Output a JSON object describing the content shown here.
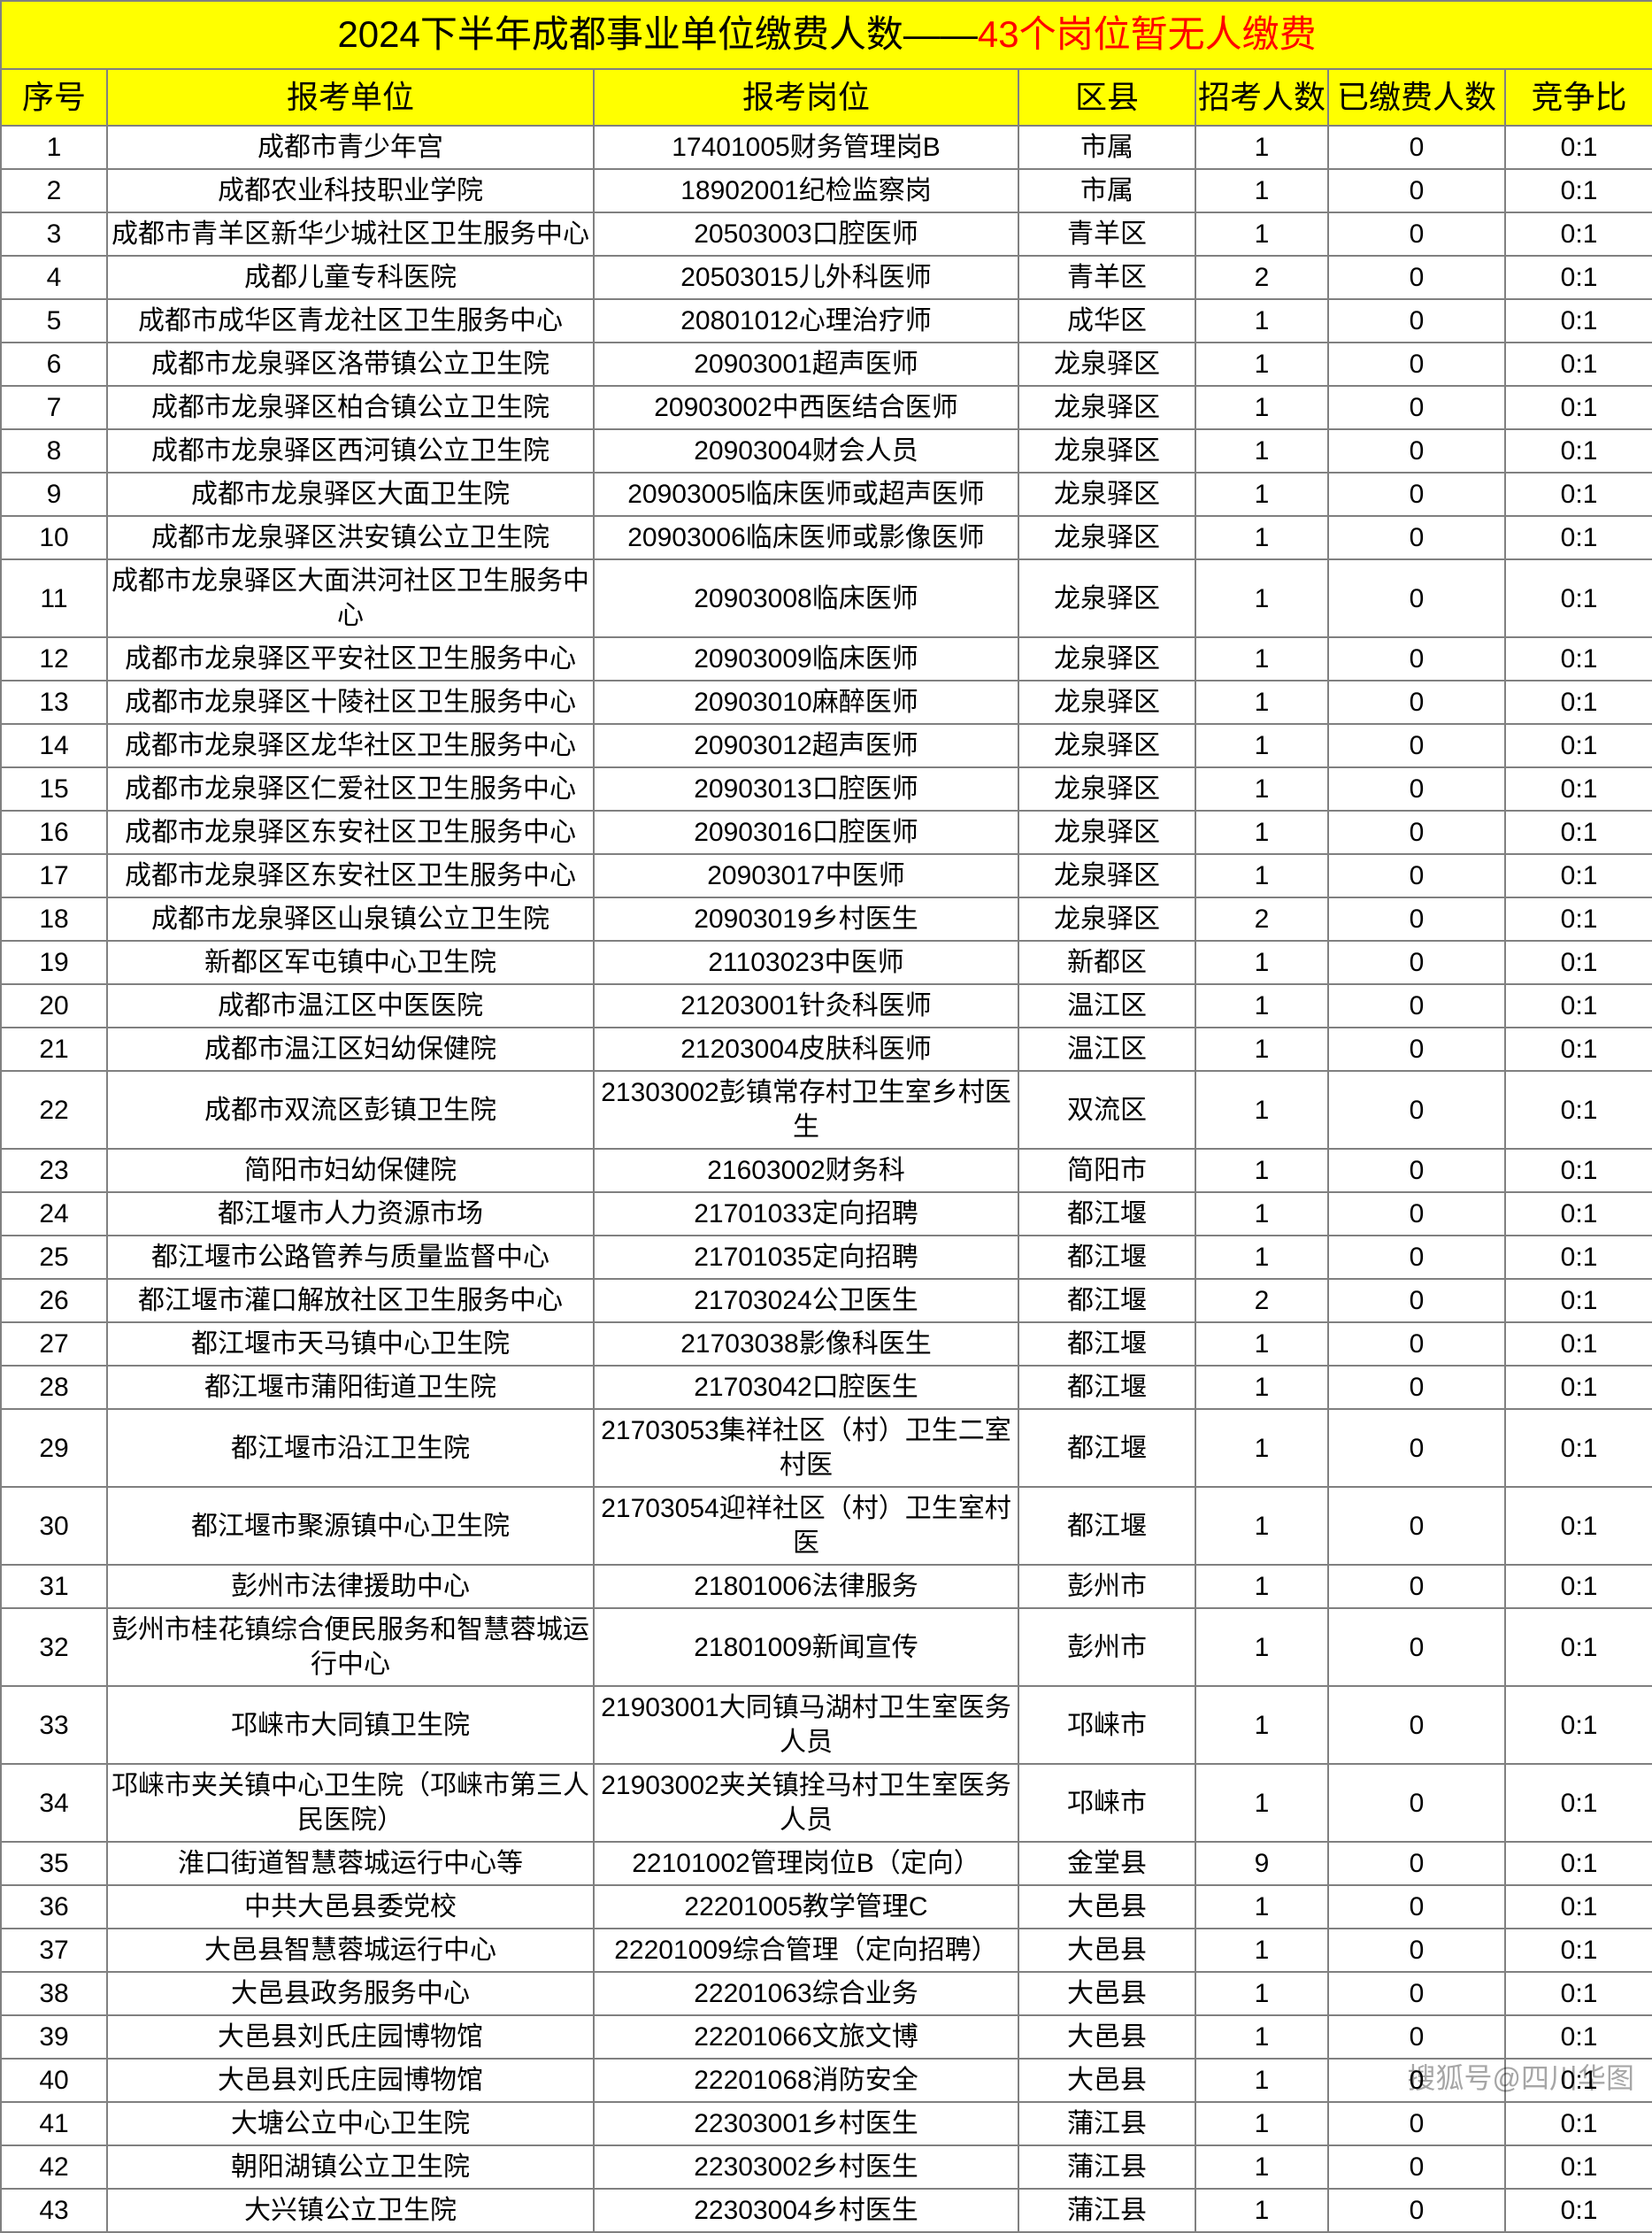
{
  "title_prefix": "2024下半年成都事业单位缴费人数——",
  "title_highlight": "43个岗位暂无人缴费",
  "watermark": "搜狐号@四川华图",
  "headers": [
    "序号",
    "报考单位",
    "报考岗位",
    "区县",
    "招考人数",
    "已缴费人数",
    "竞争比"
  ],
  "rows": [
    {
      "n": "1",
      "unit": "成都市青少年宫",
      "post": "17401005财务管理岗B",
      "area": "市属",
      "recruit": "1",
      "paid": "0",
      "ratio": "0:1"
    },
    {
      "n": "2",
      "unit": "成都农业科技职业学院",
      "post": "18902001纪检监察岗",
      "area": "市属",
      "recruit": "1",
      "paid": "0",
      "ratio": "0:1"
    },
    {
      "n": "3",
      "unit": "成都市青羊区新华少城社区卫生服务中心",
      "post": "20503003口腔医师",
      "area": "青羊区",
      "recruit": "1",
      "paid": "0",
      "ratio": "0:1"
    },
    {
      "n": "4",
      "unit": "成都儿童专科医院",
      "post": "20503015儿外科医师",
      "area": "青羊区",
      "recruit": "2",
      "paid": "0",
      "ratio": "0:1"
    },
    {
      "n": "5",
      "unit": "成都市成华区青龙社区卫生服务中心",
      "post": "20801012心理治疗师",
      "area": "成华区",
      "recruit": "1",
      "paid": "0",
      "ratio": "0:1"
    },
    {
      "n": "6",
      "unit": "成都市龙泉驿区洛带镇公立卫生院",
      "post": "20903001超声医师",
      "area": "龙泉驿区",
      "recruit": "1",
      "paid": "0",
      "ratio": "0:1"
    },
    {
      "n": "7",
      "unit": "成都市龙泉驿区柏合镇公立卫生院",
      "post": "20903002中西医结合医师",
      "area": "龙泉驿区",
      "recruit": "1",
      "paid": "0",
      "ratio": "0:1"
    },
    {
      "n": "8",
      "unit": "成都市龙泉驿区西河镇公立卫生院",
      "post": "20903004财会人员",
      "area": "龙泉驿区",
      "recruit": "1",
      "paid": "0",
      "ratio": "0:1"
    },
    {
      "n": "9",
      "unit": "成都市龙泉驿区大面卫生院",
      "post": "20903005临床医师或超声医师",
      "area": "龙泉驿区",
      "recruit": "1",
      "paid": "0",
      "ratio": "0:1"
    },
    {
      "n": "10",
      "unit": "成都市龙泉驿区洪安镇公立卫生院",
      "post": "20903006临床医师或影像医师",
      "area": "龙泉驿区",
      "recruit": "1",
      "paid": "0",
      "ratio": "0:1"
    },
    {
      "n": "11",
      "unit": "成都市龙泉驿区大面洪河社区卫生服务中心",
      "post": "20903008临床医师",
      "area": "龙泉驿区",
      "recruit": "1",
      "paid": "0",
      "ratio": "0:1"
    },
    {
      "n": "12",
      "unit": "成都市龙泉驿区平安社区卫生服务中心",
      "post": "20903009临床医师",
      "area": "龙泉驿区",
      "recruit": "1",
      "paid": "0",
      "ratio": "0:1"
    },
    {
      "n": "13",
      "unit": "成都市龙泉驿区十陵社区卫生服务中心",
      "post": "20903010麻醉医师",
      "area": "龙泉驿区",
      "recruit": "1",
      "paid": "0",
      "ratio": "0:1"
    },
    {
      "n": "14",
      "unit": "成都市龙泉驿区龙华社区卫生服务中心",
      "post": "20903012超声医师",
      "area": "龙泉驿区",
      "recruit": "1",
      "paid": "0",
      "ratio": "0:1"
    },
    {
      "n": "15",
      "unit": "成都市龙泉驿区仁爱社区卫生服务中心",
      "post": "20903013口腔医师",
      "area": "龙泉驿区",
      "recruit": "1",
      "paid": "0",
      "ratio": "0:1"
    },
    {
      "n": "16",
      "unit": "成都市龙泉驿区东安社区卫生服务中心",
      "post": "20903016口腔医师",
      "area": "龙泉驿区",
      "recruit": "1",
      "paid": "0",
      "ratio": "0:1"
    },
    {
      "n": "17",
      "unit": "成都市龙泉驿区东安社区卫生服务中心",
      "post": "20903017中医师",
      "area": "龙泉驿区",
      "recruit": "1",
      "paid": "0",
      "ratio": "0:1"
    },
    {
      "n": "18",
      "unit": "成都市龙泉驿区山泉镇公立卫生院",
      "post": "20903019乡村医生",
      "area": "龙泉驿区",
      "recruit": "2",
      "paid": "0",
      "ratio": "0:1"
    },
    {
      "n": "19",
      "unit": "新都区军屯镇中心卫生院",
      "post": "21103023中医师",
      "area": "新都区",
      "recruit": "1",
      "paid": "0",
      "ratio": "0:1"
    },
    {
      "n": "20",
      "unit": "成都市温江区中医医院",
      "post": "21203001针灸科医师",
      "area": "温江区",
      "recruit": "1",
      "paid": "0",
      "ratio": "0:1"
    },
    {
      "n": "21",
      "unit": "成都市温江区妇幼保健院",
      "post": "21203004皮肤科医师",
      "area": "温江区",
      "recruit": "1",
      "paid": "0",
      "ratio": "0:1"
    },
    {
      "n": "22",
      "unit": "成都市双流区彭镇卫生院",
      "post": "21303002彭镇常存村卫生室乡村医生",
      "area": "双流区",
      "recruit": "1",
      "paid": "0",
      "ratio": "0:1"
    },
    {
      "n": "23",
      "unit": "简阳市妇幼保健院",
      "post": "21603002财务科",
      "area": "简阳市",
      "recruit": "1",
      "paid": "0",
      "ratio": "0:1"
    },
    {
      "n": "24",
      "unit": "都江堰市人力资源市场",
      "post": "21701033定向招聘",
      "area": "都江堰",
      "recruit": "1",
      "paid": "0",
      "ratio": "0:1"
    },
    {
      "n": "25",
      "unit": "都江堰市公路管养与质量监督中心",
      "post": "21701035定向招聘",
      "area": "都江堰",
      "recruit": "1",
      "paid": "0",
      "ratio": "0:1"
    },
    {
      "n": "26",
      "unit": "都江堰市灌口解放社区卫生服务中心",
      "post": "21703024公卫医生",
      "area": "都江堰",
      "recruit": "2",
      "paid": "0",
      "ratio": "0:1"
    },
    {
      "n": "27",
      "unit": "都江堰市天马镇中心卫生院",
      "post": "21703038影像科医生",
      "area": "都江堰",
      "recruit": "1",
      "paid": "0",
      "ratio": "0:1"
    },
    {
      "n": "28",
      "unit": "都江堰市蒲阳街道卫生院",
      "post": "21703042口腔医生",
      "area": "都江堰",
      "recruit": "1",
      "paid": "0",
      "ratio": "0:1"
    },
    {
      "n": "29",
      "unit": "都江堰市沿江卫生院",
      "post": "21703053集祥社区（村）卫生二室村医",
      "area": "都江堰",
      "recruit": "1",
      "paid": "0",
      "ratio": "0:1"
    },
    {
      "n": "30",
      "unit": "都江堰市聚源镇中心卫生院",
      "post": "21703054迎祥社区（村）卫生室村医",
      "area": "都江堰",
      "recruit": "1",
      "paid": "0",
      "ratio": "0:1"
    },
    {
      "n": "31",
      "unit": "彭州市法律援助中心",
      "post": "21801006法律服务",
      "area": "彭州市",
      "recruit": "1",
      "paid": "0",
      "ratio": "0:1"
    },
    {
      "n": "32",
      "unit": "彭州市桂花镇综合便民服务和智慧蓉城运行中心",
      "post": "21801009新闻宣传",
      "area": "彭州市",
      "recruit": "1",
      "paid": "0",
      "ratio": "0:1"
    },
    {
      "n": "33",
      "unit": "邛崃市大同镇卫生院",
      "post": "21903001大同镇马湖村卫生室医务人员",
      "area": "邛崃市",
      "recruit": "1",
      "paid": "0",
      "ratio": "0:1"
    },
    {
      "n": "34",
      "unit": "邛崃市夹关镇中心卫生院（邛崃市第三人民医院）",
      "post": "21903002夹关镇拴马村卫生室医务人员",
      "area": "邛崃市",
      "recruit": "1",
      "paid": "0",
      "ratio": "0:1"
    },
    {
      "n": "35",
      "unit": "淮口街道智慧蓉城运行中心等",
      "post": "22101002管理岗位B（定向）",
      "area": "金堂县",
      "recruit": "9",
      "paid": "0",
      "ratio": "0:1"
    },
    {
      "n": "36",
      "unit": "中共大邑县委党校",
      "post": "22201005教学管理C",
      "area": "大邑县",
      "recruit": "1",
      "paid": "0",
      "ratio": "0:1"
    },
    {
      "n": "37",
      "unit": "大邑县智慧蓉城运行中心",
      "post": "22201009综合管理（定向招聘）",
      "area": "大邑县",
      "recruit": "1",
      "paid": "0",
      "ratio": "0:1"
    },
    {
      "n": "38",
      "unit": "大邑县政务服务中心",
      "post": "22201063综合业务",
      "area": "大邑县",
      "recruit": "1",
      "paid": "0",
      "ratio": "0:1"
    },
    {
      "n": "39",
      "unit": "大邑县刘氏庄园博物馆",
      "post": "22201066文旅文博",
      "area": "大邑县",
      "recruit": "1",
      "paid": "0",
      "ratio": "0:1"
    },
    {
      "n": "40",
      "unit": "大邑县刘氏庄园博物馆",
      "post": "22201068消防安全",
      "area": "大邑县",
      "recruit": "1",
      "paid": "0",
      "ratio": "0:1"
    },
    {
      "n": "41",
      "unit": "大塘公立中心卫生院",
      "post": "22303001乡村医生",
      "area": "蒲江县",
      "recruit": "1",
      "paid": "0",
      "ratio": "0:1"
    },
    {
      "n": "42",
      "unit": "朝阳湖镇公立卫生院",
      "post": "22303002乡村医生",
      "area": "蒲江县",
      "recruit": "1",
      "paid": "0",
      "ratio": "0:1"
    },
    {
      "n": "43",
      "unit": "大兴镇公立卫生院",
      "post": "22303004乡村医生",
      "area": "蒲江县",
      "recruit": "1",
      "paid": "0",
      "ratio": "0:1"
    }
  ]
}
